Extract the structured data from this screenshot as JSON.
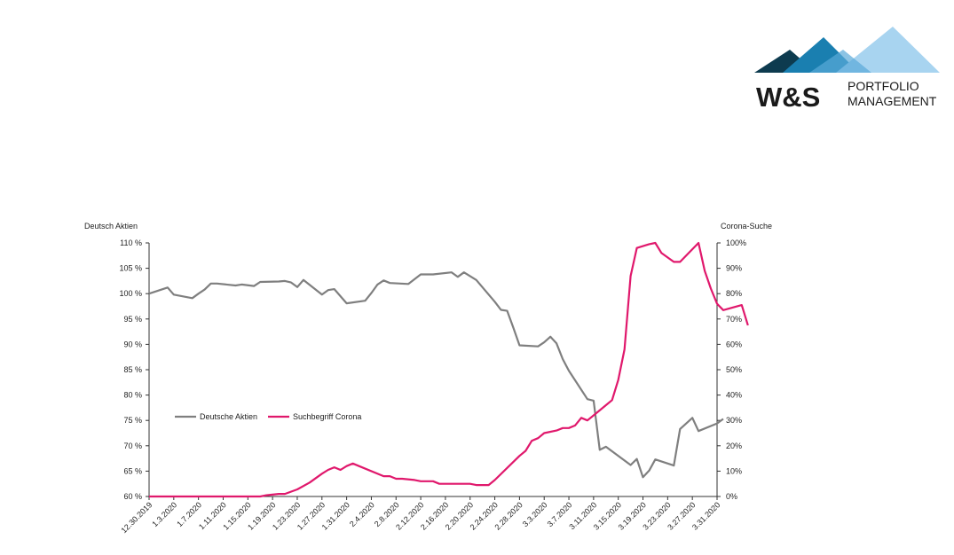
{
  "logo": {
    "mark": "W&S",
    "line1": "PORTFOLIO",
    "line2": "MANAGEMENT",
    "colors": [
      "#0d3b4f",
      "#1a7fb0",
      "#a8d4f0",
      "#5aaad8"
    ]
  },
  "chart_data": {
    "type": "line",
    "left_axis_title": "Deutsch Aktien",
    "right_axis_title": "Corona-Suche",
    "left_ticks": [
      "110 %",
      "105 %",
      "100 %",
      "95 %",
      "90 %",
      "85 %",
      "80 %",
      "75 %",
      "70 %",
      "65 %",
      "60 %"
    ],
    "right_ticks": [
      "100%",
      "90%",
      "80%",
      "70%",
      "60%",
      "50%",
      "40%",
      "30%",
      "20%",
      "10%",
      "0%"
    ],
    "ylim_left": [
      60,
      110
    ],
    "ylim_right": [
      0,
      100
    ],
    "x_tick_labels": [
      "12.30.2019",
      "1.3.2020",
      "1.7.2020",
      "1.11.2020",
      "1.15.2020",
      "1.19.2020",
      "1.23.2020",
      "1.27.2020",
      "1.31.2020",
      "2.4.2020",
      "2.8.2020",
      "2.12.2020",
      "2.16.2020",
      "2.20.2020",
      "2.24.2020",
      "2.28.2020",
      "3.3.2020",
      "3.7.2020",
      "3.11.2020",
      "3.15.2020",
      "3.19.2020",
      "3.23.2020",
      "3.27.2020",
      "3.31.2020"
    ],
    "x_range_days": [
      0,
      92
    ],
    "legend_position": "lower-left inside",
    "series": [
      {
        "name": "Deutsche Aktien",
        "axis": "left",
        "color": "#7f7f7f",
        "points": [
          [
            0,
            100
          ],
          [
            3,
            101.2
          ],
          [
            4,
            99.8
          ],
          [
            7,
            99.1
          ],
          [
            8,
            100
          ],
          [
            9,
            100.8
          ],
          [
            10,
            102
          ],
          [
            11,
            102
          ],
          [
            14,
            101.6
          ],
          [
            15,
            101.8
          ],
          [
            17,
            101.5
          ],
          [
            18,
            102.3
          ],
          [
            21,
            102.4
          ],
          [
            22,
            102.5
          ],
          [
            23,
            102.2
          ],
          [
            24,
            101.3
          ],
          [
            25,
            102.7
          ],
          [
            28,
            99.8
          ],
          [
            29,
            100.7
          ],
          [
            30,
            100.9
          ],
          [
            32,
            98.1
          ],
          [
            35,
            98.6
          ],
          [
            36,
            100.1
          ],
          [
            37,
            101.8
          ],
          [
            38,
            102.6
          ],
          [
            39,
            102.1
          ],
          [
            42,
            101.9
          ],
          [
            44,
            103.8
          ],
          [
            46,
            103.8
          ],
          [
            49,
            104.2
          ],
          [
            50,
            103.3
          ],
          [
            51,
            104.2
          ],
          [
            53,
            102.7
          ],
          [
            56,
            98.4
          ],
          [
            57,
            96.8
          ],
          [
            58,
            96.6
          ],
          [
            59,
            93.3
          ],
          [
            60,
            89.8
          ],
          [
            63,
            89.6
          ],
          [
            64,
            90.4
          ],
          [
            65,
            91.5
          ],
          [
            66,
            90.2
          ],
          [
            67,
            87.1
          ],
          [
            68,
            84.8
          ],
          [
            71,
            79.2
          ],
          [
            72,
            78.9
          ],
          [
            73,
            69.2
          ],
          [
            74,
            69.8
          ],
          [
            78,
            66.2
          ],
          [
            79,
            67.4
          ],
          [
            80,
            63.8
          ],
          [
            81,
            65.1
          ],
          [
            82,
            67.3
          ],
          [
            85,
            66.1
          ],
          [
            86,
            73.3
          ],
          [
            88,
            75.5
          ],
          [
            89,
            72.9
          ],
          [
            92,
            74.4
          ],
          [
            93,
            75.3
          ]
        ]
      },
      {
        "name": "Suchbegriff Corona",
        "axis": "right",
        "color": "#e0186c",
        "points": [
          [
            0,
            0
          ],
          [
            18,
            0
          ],
          [
            19,
            0.5
          ],
          [
            21,
            1
          ],
          [
            22,
            1
          ],
          [
            24,
            2.8
          ],
          [
            26,
            5.5
          ],
          [
            28,
            9
          ],
          [
            29,
            10.5
          ],
          [
            30,
            11.5
          ],
          [
            31,
            10.5
          ],
          [
            32,
            12
          ],
          [
            33,
            13
          ],
          [
            34,
            12
          ],
          [
            38,
            8
          ],
          [
            39,
            8
          ],
          [
            40,
            7
          ],
          [
            41,
            7
          ],
          [
            43,
            6.5
          ],
          [
            44,
            6
          ],
          [
            46,
            6
          ],
          [
            47,
            5
          ],
          [
            50,
            5
          ],
          [
            52,
            5
          ],
          [
            53,
            4.5
          ],
          [
            55,
            4.5
          ],
          [
            56,
            6.5
          ],
          [
            60,
            16
          ],
          [
            61,
            18
          ],
          [
            62,
            22
          ],
          [
            63,
            23
          ],
          [
            64,
            25
          ],
          [
            66,
            26
          ],
          [
            67,
            27
          ],
          [
            68,
            27
          ],
          [
            69,
            28
          ],
          [
            70,
            31
          ],
          [
            71,
            30
          ],
          [
            72,
            32
          ],
          [
            74,
            36
          ],
          [
            75,
            38
          ],
          [
            76,
            46
          ],
          [
            77,
            58
          ],
          [
            78,
            87
          ],
          [
            79,
            98
          ],
          [
            81,
            99.5
          ],
          [
            82,
            100
          ],
          [
            83,
            96
          ],
          [
            85,
            92.5
          ],
          [
            86,
            92.5
          ],
          [
            89,
            100
          ],
          [
            90,
            89
          ],
          [
            91,
            82
          ],
          [
            92,
            76
          ],
          [
            93,
            73.5
          ],
          [
            96,
            75.5
          ],
          [
            97,
            67.5
          ]
        ]
      }
    ]
  }
}
